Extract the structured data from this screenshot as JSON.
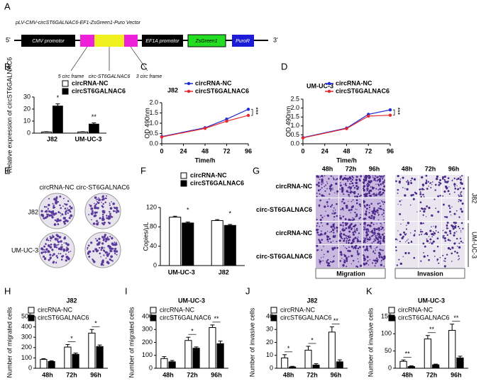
{
  "vector": {
    "label": "A",
    "title": "pLV-CMV-circST6GALNAC6-EF1-ZsGreen1-Puro Vector",
    "end5": "5'",
    "end3": "3'",
    "cmv": "CMV promotor",
    "ef1a": "EF1A promotor",
    "zsgreen": "ZsGreen1",
    "puro": "PuroR",
    "frame5": "5 circ frame",
    "circ": "circ-ST6GALNAC6",
    "frame3": "3 circ frame"
  },
  "colony": {
    "label": "E",
    "columns": [
      "circRNA-NC",
      "circ-ST6GALNAC6"
    ],
    "rows": [
      "J82",
      "UM-UC-3"
    ]
  },
  "transwell": {
    "label": "G",
    "times": [
      "48h",
      "72h",
      "96h"
    ],
    "rows": [
      "circRNA-NC",
      "circ-ST6GALNAC6",
      "circRNA-NC",
      "circ-ST6GALNAC6"
    ],
    "groups": [
      "J82",
      "UM-UC-3"
    ],
    "captions": [
      "Migration",
      "Invasion"
    ]
  },
  "chart_data": [
    {
      "type": "bar",
      "label": "B",
      "ylabel": "Relative expression of circST6GALNAC6",
      "categories": [
        "J82",
        "UM-UC-3"
      ],
      "series": [
        {
          "name": "circRNA-NC",
          "color": "#ffffff",
          "values": [
            1,
            1
          ],
          "errors": [
            0.2,
            0.2
          ]
        },
        {
          "name": "circST6GALNAC6",
          "color": "#000000",
          "values": [
            22.5,
            7.5
          ],
          "errors": [
            1.8,
            1
          ]
        }
      ],
      "annotations": [
        "*",
        "**"
      ],
      "ylim": [
        0,
        30
      ],
      "yticks": [
        0,
        10,
        20,
        30
      ]
    },
    {
      "type": "line",
      "label": "C",
      "title": "J82",
      "xlabel": "Time/h",
      "ylabel": "OD 490nm",
      "x": [
        0,
        48,
        72,
        96
      ],
      "series": [
        {
          "name": "circRNA-NC",
          "color": "#1f2bd6",
          "values": [
            0.35,
            0.78,
            1.2,
            1.68
          ]
        },
        {
          "name": "circST6GALNAC6",
          "color": "#e8262a",
          "values": [
            0.33,
            0.75,
            1.1,
            1.38
          ]
        }
      ],
      "annotation": "***",
      "xlim": [
        0,
        96
      ],
      "xticks": [
        0,
        24,
        48,
        72,
        96
      ],
      "ylim": [
        0,
        2
      ],
      "yticks": [
        {
          "value": 0,
          "label": "0.0"
        },
        {
          "value": 0.5,
          "label": "0.5"
        },
        {
          "value": 1,
          "label": "1.0"
        },
        {
          "value": 1.5,
          "label": "1.5"
        },
        {
          "value": 2,
          "label": "2.0"
        }
      ]
    },
    {
      "type": "line",
      "label": "D",
      "title": "UM-UC-3",
      "xlabel": "Time/h",
      "ylabel": "OD 490nm",
      "x": [
        0,
        48,
        72,
        96
      ],
      "series": [
        {
          "name": "circRNA-NC",
          "color": "#1f2bd6",
          "values": [
            0.35,
            0.88,
            1.65,
            1.9
          ]
        },
        {
          "name": "circST6GALNAC6",
          "color": "#e8262a",
          "values": [
            0.33,
            0.85,
            1.55,
            1.6
          ]
        }
      ],
      "annotation": "***",
      "xlim": [
        0,
        96
      ],
      "xticks": [
        0,
        24,
        48,
        72,
        96
      ],
      "ylim": [
        0,
        2.5
      ],
      "yticks": [
        {
          "value": 0,
          "label": "0.0"
        },
        {
          "value": 0.5,
          "label": "0.5"
        },
        {
          "value": 1,
          "label": "1.0"
        },
        {
          "value": 1.5,
          "label": "1.5"
        },
        {
          "value": 2,
          "label": "2.0"
        },
        {
          "value": 2.5,
          "label": "2.5"
        }
      ]
    },
    {
      "type": "bar",
      "label": "F",
      "ylabel": "Copies/μL",
      "categories": [
        "UM-UC-3",
        "J82"
      ],
      "series": [
        {
          "name": "circRNA-NC",
          "color": "#ffffff",
          "values": [
            100,
            93
          ],
          "errors": [
            2,
            2
          ]
        },
        {
          "name": "circST6GALNAC6",
          "color": "#000000",
          "values": [
            88,
            83
          ],
          "errors": [
            2,
            2
          ]
        }
      ],
      "annotations": [
        "*",
        "*"
      ],
      "ylim": [
        0,
        120
      ],
      "yticks": [
        0,
        40,
        80,
        120
      ]
    },
    {
      "type": "bar",
      "label": "H",
      "title": "J82",
      "ylabel": "Number of migrated cells",
      "categories": [
        "48h",
        "72h",
        "96h"
      ],
      "series": [
        {
          "name": "circRNA-NC",
          "color": "#ffffff",
          "values": [
            85,
            205,
            340
          ],
          "errors": [
            8,
            25,
            35
          ]
        },
        {
          "name": "circST6GALNAC6",
          "color": "#000000",
          "values": [
            65,
            135,
            210
          ],
          "errors": [
            8,
            12,
            15
          ]
        }
      ],
      "annotations": [
        null,
        "*",
        "*"
      ],
      "ylim": [
        0,
        500
      ],
      "yticks": [
        0,
        100,
        200,
        300,
        400,
        500
      ]
    },
    {
      "type": "bar",
      "label": "I",
      "title": "UM-UC-3",
      "ylabel": "Number of migrated cells",
      "categories": [
        "48h",
        "72h",
        "96h"
      ],
      "series": [
        {
          "name": "circRNA-NC",
          "color": "#ffffff",
          "values": [
            75,
            215,
            315
          ],
          "errors": [
            15,
            25,
            20
          ]
        },
        {
          "name": "circST6GALNAC6",
          "color": "#000000",
          "values": [
            50,
            155,
            190
          ],
          "errors": [
            10,
            10,
            20
          ]
        }
      ],
      "annotations": [
        null,
        "*",
        "**"
      ],
      "ylim": [
        0,
        400
      ],
      "yticks": [
        0,
        100,
        200,
        300,
        400
      ]
    },
    {
      "type": "bar",
      "label": "J",
      "title": "J82",
      "ylabel": "Number of invasive cells",
      "categories": [
        "48h",
        "72h",
        "96h"
      ],
      "series": [
        {
          "name": "circRNA-NC",
          "color": "#ffffff",
          "values": [
            8,
            14,
            28
          ],
          "errors": [
            2.5,
            3,
            4
          ]
        },
        {
          "name": "circST6GALNAC6",
          "color": "#000000",
          "values": [
            1,
            2.5,
            5
          ],
          "errors": [
            0.5,
            1,
            1.5
          ]
        }
      ],
      "annotations": [
        "*",
        "*",
        "**"
      ],
      "ylim": [
        0,
        40
      ],
      "yticks": [
        0,
        10,
        20,
        30,
        40
      ]
    },
    {
      "type": "bar",
      "label": "K",
      "title": "UM-UC-3",
      "ylabel": "Number of invasive cells",
      "categories": [
        "48h",
        "72h",
        "96h"
      ],
      "series": [
        {
          "name": "circRNA-NC",
          "color": "#ffffff",
          "values": [
            20,
            85,
            110
          ],
          "errors": [
            4,
            10,
            18
          ]
        },
        {
          "name": "circST6GALNAC6",
          "color": "#000000",
          "values": [
            5,
            10,
            30
          ],
          "errors": [
            2,
            2,
            5
          ]
        }
      ],
      "annotations": [
        "**",
        "**",
        "**"
      ],
      "ylim": [
        0,
        150
      ],
      "yticks": [
        0,
        50,
        100,
        150
      ]
    }
  ]
}
